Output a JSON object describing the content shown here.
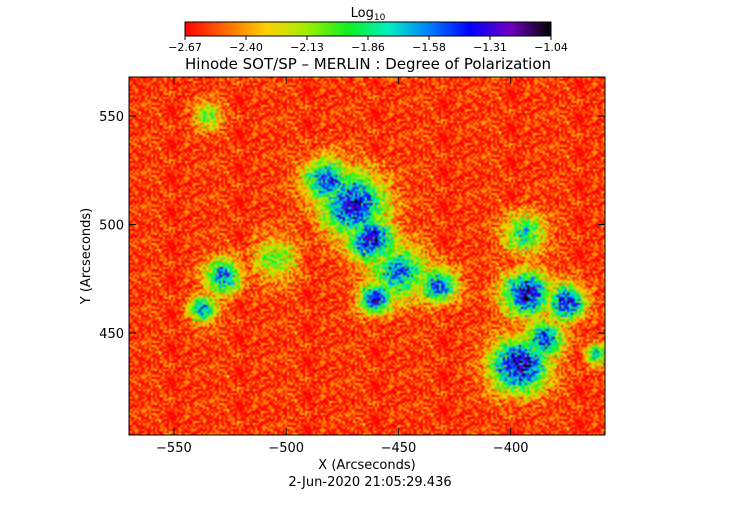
{
  "chart_data": {
    "type": "heatmap",
    "title": "Hinode SOT/SP – MERLIN : Degree of Polarization",
    "xlabel": "X (Arcseconds)",
    "ylabel": "Y (Arcseconds)",
    "timestamp": "2-Jun-2020 21:05:29.436",
    "colorbar": {
      "label_base": "Log",
      "label_sub": "10",
      "range": [
        -2.67,
        -1.04
      ],
      "ticks": [
        "-2.67",
        "-2.40",
        "-2.13",
        "-1.86",
        "-1.58",
        "-1.31",
        "-1.04"
      ],
      "colors": [
        "#ff0000",
        "#ff6a00",
        "#ffd000",
        "#a0f000",
        "#10f020",
        "#00f0c0",
        "#0080ff",
        "#0000ff",
        "#7000c0",
        "#000000"
      ]
    },
    "xlim": [
      -570,
      -358
    ],
    "ylim": [
      403,
      568
    ],
    "x_ticks": [
      -550,
      -500,
      -450,
      -400
    ],
    "x_tick_labels": [
      "−550",
      "−500",
      "−450",
      "−400"
    ],
    "y_ticks": [
      450,
      500,
      550
    ],
    "y_tick_labels": [
      "450",
      "500",
      "550"
    ],
    "background_level": -2.6,
    "features": [
      {
        "x": -470,
        "y": 509,
        "level": -1.35,
        "spread": 14
      },
      {
        "x": -462,
        "y": 493,
        "level": -1.3,
        "spread": 10
      },
      {
        "x": -482,
        "y": 520,
        "level": -1.5,
        "spread": 10
      },
      {
        "x": -450,
        "y": 478,
        "level": -1.6,
        "spread": 12
      },
      {
        "x": -460,
        "y": 466,
        "level": -1.35,
        "spread": 7
      },
      {
        "x": -432,
        "y": 472,
        "level": -1.5,
        "spread": 8
      },
      {
        "x": -396,
        "y": 435,
        "level": -1.2,
        "spread": 12
      },
      {
        "x": -393,
        "y": 468,
        "level": -1.25,
        "spread": 10
      },
      {
        "x": -375,
        "y": 464,
        "level": -1.35,
        "spread": 8
      },
      {
        "x": -385,
        "y": 447,
        "level": -1.45,
        "spread": 8
      },
      {
        "x": -528,
        "y": 476,
        "level": -1.6,
        "spread": 8
      },
      {
        "x": -537,
        "y": 461,
        "level": -1.65,
        "spread": 6
      },
      {
        "x": -394,
        "y": 496,
        "level": -1.8,
        "spread": 9
      },
      {
        "x": -535,
        "y": 550,
        "level": -2.0,
        "spread": 6
      },
      {
        "x": -505,
        "y": 484,
        "level": -2.05,
        "spread": 10
      },
      {
        "x": -362,
        "y": 440,
        "level": -1.8,
        "spread": 5
      }
    ]
  }
}
